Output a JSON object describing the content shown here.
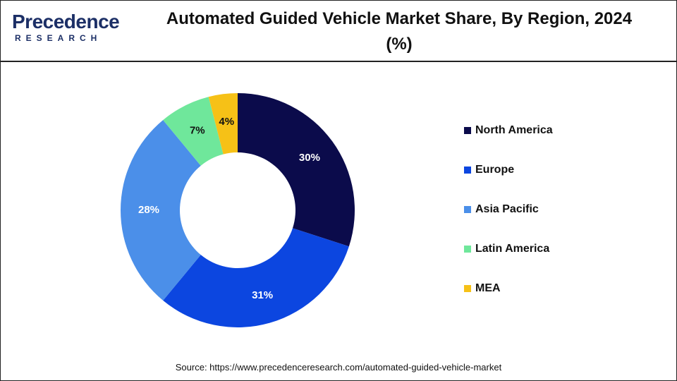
{
  "logo": {
    "name": "Precedence",
    "tagline": "RESEARCH"
  },
  "chart_data": {
    "type": "donut",
    "title": "Automated Guided Vehicle Market Share, By Region, 2024 (%)",
    "categories": [
      "North America",
      "Europe",
      "Asia Pacific",
      "Latin America",
      "MEA"
    ],
    "values": [
      30,
      31,
      28,
      7,
      4
    ],
    "value_labels": [
      "30%",
      "31%",
      "28%",
      "7%",
      "4%"
    ],
    "colors": [
      "#0b0b4b",
      "#0c46e0",
      "#4b8fe9",
      "#6fe79b",
      "#f6c117"
    ],
    "source": "Source: https://www.precedenceresearch.com/automated-guided-vehicle-market"
  }
}
